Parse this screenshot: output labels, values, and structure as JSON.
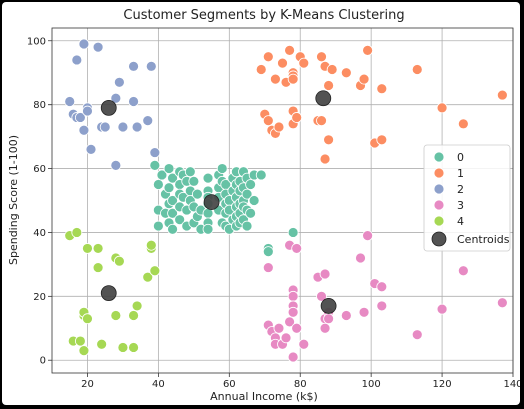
{
  "chart_data": {
    "type": "scatter",
    "title": "Customer Segments by K-Means Clustering",
    "xlabel": "Annual Income (k$)",
    "ylabel": "Spending Score (1-100)",
    "xlim": [
      10,
      140
    ],
    "ylim": [
      -4,
      104
    ],
    "xticks": [
      20,
      40,
      60,
      80,
      100,
      120,
      140
    ],
    "yticks": [
      0,
      20,
      40,
      60,
      80,
      100
    ],
    "grid": true,
    "legend_position": "center-right",
    "series": [
      {
        "name": "0",
        "color": "#66c2a5",
        "points": [
          [
            39,
            61
          ],
          [
            40,
            55
          ],
          [
            40,
            47
          ],
          [
            40,
            42
          ],
          [
            41,
            58
          ],
          [
            42,
            52
          ],
          [
            42,
            46
          ],
          [
            43,
            60
          ],
          [
            43,
            54
          ],
          [
            43,
            49
          ],
          [
            43,
            43
          ],
          [
            44,
            57
          ],
          [
            44,
            50
          ],
          [
            44,
            46
          ],
          [
            44,
            41
          ],
          [
            46,
            59
          ],
          [
            46,
            55
          ],
          [
            46,
            52
          ],
          [
            46,
            48
          ],
          [
            46,
            44
          ],
          [
            47,
            58
          ],
          [
            47,
            51
          ],
          [
            48,
            56
          ],
          [
            48,
            47
          ],
          [
            48,
            42
          ],
          [
            49,
            59
          ],
          [
            49,
            53
          ],
          [
            49,
            50
          ],
          [
            50,
            56
          ],
          [
            50,
            48
          ],
          [
            50,
            43
          ],
          [
            51,
            52
          ],
          [
            51,
            45
          ],
          [
            52,
            47
          ],
          [
            52,
            41
          ],
          [
            54,
            57
          ],
          [
            54,
            53
          ],
          [
            54,
            51
          ],
          [
            54,
            49
          ],
          [
            54,
            46
          ],
          [
            54,
            43
          ],
          [
            54,
            41
          ],
          [
            57,
            58
          ],
          [
            57,
            54
          ],
          [
            57,
            51
          ],
          [
            57,
            47
          ],
          [
            58,
            60
          ],
          [
            58,
            56
          ],
          [
            58,
            43
          ],
          [
            59,
            55
          ],
          [
            59,
            52
          ],
          [
            59,
            49
          ],
          [
            59,
            46
          ],
          [
            59,
            42
          ],
          [
            60,
            50
          ],
          [
            60,
            47
          ],
          [
            60,
            41
          ],
          [
            61,
            57
          ],
          [
            61,
            53
          ],
          [
            61,
            44
          ],
          [
            62,
            59
          ],
          [
            62,
            55
          ],
          [
            62,
            51
          ],
          [
            62,
            48
          ],
          [
            62,
            45
          ],
          [
            62,
            42
          ],
          [
            63,
            56
          ],
          [
            63,
            53
          ],
          [
            63,
            49
          ],
          [
            63,
            46
          ],
          [
            63,
            43
          ],
          [
            64,
            59
          ],
          [
            64,
            54
          ],
          [
            64,
            50
          ],
          [
            64,
            48
          ],
          [
            64,
            44
          ],
          [
            65,
            57
          ],
          [
            65,
            52
          ],
          [
            65,
            47
          ],
          [
            65,
            42
          ],
          [
            66,
            55
          ],
          [
            66,
            46
          ],
          [
            67,
            58
          ],
          [
            67,
            50
          ],
          [
            69,
            58
          ],
          [
            71,
            35
          ],
          [
            71,
            34
          ],
          [
            78,
            40
          ]
        ]
      },
      {
        "name": "1",
        "color": "#fc8d62",
        "points": [
          [
            69,
            91
          ],
          [
            70,
            77
          ],
          [
            71,
            75
          ],
          [
            71,
            95
          ],
          [
            72,
            72
          ],
          [
            73,
            88
          ],
          [
            73,
            71
          ],
          [
            74,
            73
          ],
          [
            75,
            93
          ],
          [
            76,
            87
          ],
          [
            77,
            97
          ],
          [
            78,
            90
          ],
          [
            78,
            89
          ],
          [
            78,
            88
          ],
          [
            78,
            78
          ],
          [
            78,
            74
          ],
          [
            79,
            76
          ],
          [
            80,
            95
          ],
          [
            81,
            93
          ],
          [
            85,
            75
          ],
          [
            86,
            95
          ],
          [
            86,
            75
          ],
          [
            87,
            92
          ],
          [
            87,
            63
          ],
          [
            88,
            86
          ],
          [
            88,
            69
          ],
          [
            89,
            91
          ],
          [
            93,
            90
          ],
          [
            97,
            86
          ],
          [
            98,
            88
          ],
          [
            99,
            97
          ],
          [
            101,
            68
          ],
          [
            103,
            85
          ],
          [
            103,
            69
          ],
          [
            113,
            91
          ],
          [
            120,
            79
          ],
          [
            126,
            74
          ],
          [
            137,
            83
          ]
        ]
      },
      {
        "name": "2",
        "color": "#8da0cb",
        "points": [
          [
            15,
            81
          ],
          [
            16,
            77
          ],
          [
            17,
            94
          ],
          [
            17,
            76
          ],
          [
            18,
            76
          ],
          [
            19,
            99
          ],
          [
            19,
            72
          ],
          [
            20,
            79
          ],
          [
            20,
            78
          ],
          [
            21,
            66
          ],
          [
            23,
            98
          ],
          [
            24,
            73
          ],
          [
            25,
            73
          ],
          [
            28,
            82
          ],
          [
            28,
            61
          ],
          [
            29,
            87
          ],
          [
            30,
            73
          ],
          [
            33,
            81
          ],
          [
            33,
            92
          ],
          [
            34,
            73
          ],
          [
            37,
            75
          ],
          [
            38,
            92
          ],
          [
            39,
            65
          ]
        ]
      },
      {
        "name": "3",
        "color": "#e78ac3",
        "points": [
          [
            71,
            29
          ],
          [
            71,
            11
          ],
          [
            72,
            9
          ],
          [
            73,
            7
          ],
          [
            73,
            5
          ],
          [
            74,
            10
          ],
          [
            75,
            5
          ],
          [
            76,
            7
          ],
          [
            77,
            12
          ],
          [
            77,
            36
          ],
          [
            78,
            22
          ],
          [
            78,
            20
          ],
          [
            78,
            17
          ],
          [
            78,
            15
          ],
          [
            78,
            1
          ],
          [
            79,
            35
          ],
          [
            79,
            10
          ],
          [
            81,
            5
          ],
          [
            85,
            26
          ],
          [
            86,
            20
          ],
          [
            87,
            27
          ],
          [
            87,
            13
          ],
          [
            87,
            10
          ],
          [
            88,
            15
          ],
          [
            88,
            13
          ],
          [
            93,
            14
          ],
          [
            97,
            32
          ],
          [
            98,
            15
          ],
          [
            99,
            39
          ],
          [
            101,
            24
          ],
          [
            103,
            23
          ],
          [
            103,
            17
          ],
          [
            113,
            8
          ],
          [
            120,
            16
          ],
          [
            126,
            28
          ],
          [
            137,
            18
          ]
        ]
      },
      {
        "name": "4",
        "color": "#a6d854",
        "points": [
          [
            15,
            39
          ],
          [
            16,
            6
          ],
          [
            17,
            40
          ],
          [
            18,
            6
          ],
          [
            19,
            3
          ],
          [
            19,
            14
          ],
          [
            19,
            15
          ],
          [
            20,
            13
          ],
          [
            20,
            35
          ],
          [
            23,
            29
          ],
          [
            23,
            35
          ],
          [
            24,
            5
          ],
          [
            28,
            14
          ],
          [
            28,
            32
          ],
          [
            29,
            31
          ],
          [
            30,
            4
          ],
          [
            33,
            4
          ],
          [
            33,
            14
          ],
          [
            34,
            17
          ],
          [
            37,
            26
          ],
          [
            38,
            35
          ],
          [
            38,
            36
          ],
          [
            39,
            28
          ]
        ]
      }
    ],
    "centroids": {
      "name": "Centroids",
      "color": "#444444",
      "points": [
        [
          26,
          79
        ],
        [
          26,
          21
        ],
        [
          55,
          49.5
        ],
        [
          86.5,
          82
        ],
        [
          88,
          17
        ]
      ]
    }
  }
}
